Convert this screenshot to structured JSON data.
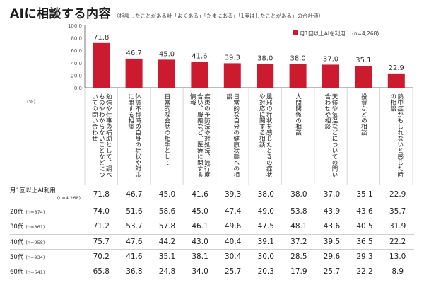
{
  "title": "AIに相談する内容",
  "subtitle": "（相談したことがある計「よくある」「たまにある」「1度はしたことがある」の合計値）",
  "chart_data": {
    "type": "bar",
    "title": "AIに相談する内容",
    "ylabel": "(%)",
    "ylim": [
      0,
      100
    ],
    "yticks": [
      "100.0",
      "80.0",
      "60.0",
      "40.0",
      "20.0",
      "0.0"
    ],
    "grid": false,
    "legend_position": "top-right",
    "categories": [
      "勉強や仕事の補助として、調べものやわからないことなどについての問い合わせ",
      "体調不良時の自身の症状や対応に関する相談",
      "日常的な会話の相手として",
      "疾患の予防法や対処法、流行度合い、服薬など、医療に関する情報",
      "日常的な自分の健康状態への相談",
      "風邪の症状を感じたときの症状や対応に関する相談",
      "人間関係の相談",
      "天候や気温などについての問い合わせや相談",
      "投資などの相談",
      "熱中症かもしれないと感じた時の相談"
    ],
    "series": [
      {
        "name": "月1回以上AIを利用",
        "n_label": "(n=4,268)",
        "color": "#cc1a2e",
        "values": [
          71.8,
          46.7,
          45.0,
          41.6,
          39.3,
          38.0,
          38.0,
          37.0,
          35.1,
          22.9
        ],
        "display": [
          "71.8",
          "46.7",
          "45.0",
          "41.6",
          "39.3",
          "38.0",
          "38.0",
          "37.0",
          "35.1",
          "22.9"
        ]
      }
    ]
  },
  "table": {
    "rows": [
      {
        "label": "月1回以上AI利用",
        "n": "(n=4,268)",
        "values": [
          "71.8",
          "46.7",
          "45.0",
          "41.6",
          "39.3",
          "38.0",
          "38.0",
          "37.0",
          "35.1",
          "22.9"
        ]
      },
      {
        "label": "20代",
        "n": "(n=874)",
        "values": [
          "74.0",
          "51.6",
          "58.6",
          "45.0",
          "47.4",
          "49.0",
          "53.8",
          "43.9",
          "43.6",
          "35.7"
        ]
      },
      {
        "label": "30代",
        "n": "(n=861)",
        "values": [
          "71.2",
          "53.7",
          "57.8",
          "46.1",
          "49.6",
          "47.5",
          "48.1",
          "43.6",
          "40.5",
          "31.9"
        ]
      },
      {
        "label": "40代",
        "n": "(n=958)",
        "values": [
          "75.7",
          "47.6",
          "44.2",
          "43.0",
          "40.4",
          "39.1",
          "37.2",
          "39.5",
          "36.5",
          "22.2"
        ]
      },
      {
        "label": "50代",
        "n": "(n=934)",
        "values": [
          "70.2",
          "41.6",
          "35.1",
          "38.1",
          "30.4",
          "30.0",
          "28.5",
          "29.6",
          "29.3",
          "13.0"
        ]
      },
      {
        "label": "60代",
        "n": "(n=641)",
        "values": [
          "65.8",
          "36.8",
          "24.8",
          "34.0",
          "25.7",
          "20.3",
          "17.9",
          "25.7",
          "22.2",
          "8.9"
        ]
      }
    ]
  },
  "colors": {
    "bar": "#cc1a2e",
    "axis": "#777777",
    "divider": "#d7d7d7"
  }
}
